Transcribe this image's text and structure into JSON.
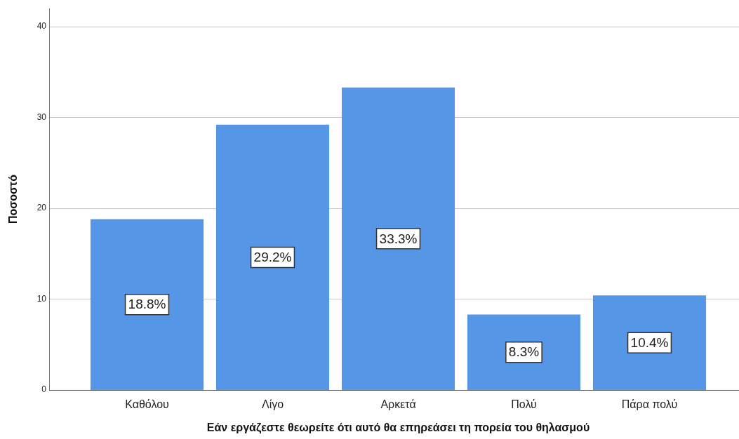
{
  "chart_data": {
    "type": "bar",
    "ylabel": "Ποσοστό",
    "xlabel": "Εάν εργάζεστε θεωρείτε ότι αυτό θα επηρεάσει τη πορεία του θηλασμού",
    "categories": [
      "Καθόλου",
      "Λίγο",
      "Αρκετά",
      "Πολύ",
      "Πάρα πολύ"
    ],
    "values": [
      18.8,
      29.2,
      33.3,
      8.3,
      10.4
    ],
    "value_labels": [
      "18.8%",
      "29.2%",
      "33.3%",
      "8.3%",
      "10.4%"
    ],
    "color": "#5596e6",
    "ylim": [
      0,
      42
    ],
    "yticks": [
      0,
      10,
      20,
      30,
      40
    ],
    "grid": "y"
  }
}
